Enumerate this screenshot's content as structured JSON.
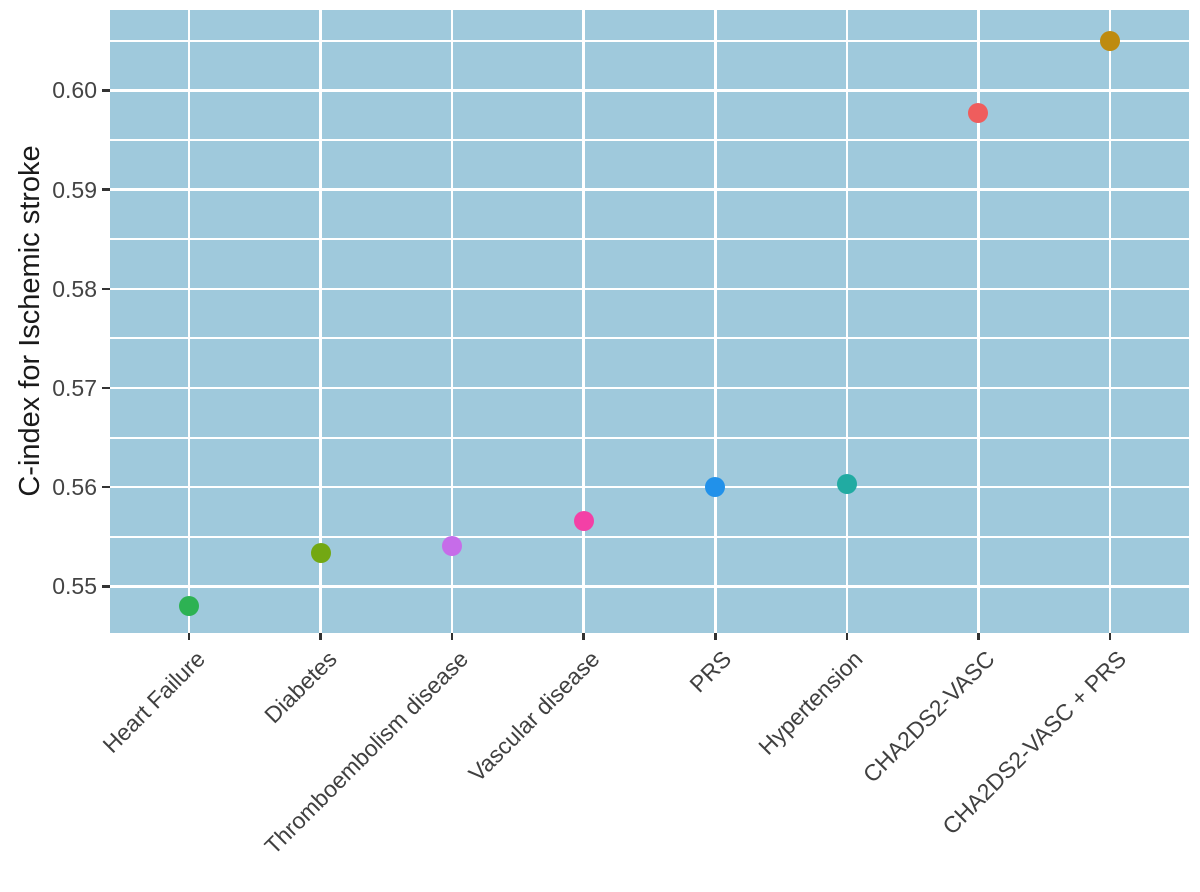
{
  "chart_data": {
    "type": "scatter",
    "title": "",
    "xlabel": "",
    "ylabel": "C-index for Ischemic stroke",
    "categories": [
      "Heart Failure",
      "Diabetes",
      "Thromboembolism disease",
      "Vascular disease",
      "PRS",
      "Hypertension",
      "CHA2DS2-VASC",
      "CHA2DS2-VASC + PRS"
    ],
    "values": [
      0.548,
      0.5534,
      0.5541,
      0.5566,
      0.56,
      0.5603,
      0.5977,
      0.605
    ],
    "point_colors": [
      "#2DB253",
      "#73A813",
      "#C66CE9",
      "#F340A6",
      "#2191EA",
      "#21ABA2",
      "#EF5D5D",
      "#BE8B10"
    ],
    "ylim": [
      0.5453,
      0.6081
    ],
    "y_major_ticks": [
      {
        "value": 0.55,
        "label": "0.55"
      },
      {
        "value": 0.56,
        "label": "0.56"
      },
      {
        "value": 0.57,
        "label": "0.57"
      },
      {
        "value": 0.58,
        "label": "0.58"
      },
      {
        "value": 0.59,
        "label": "0.59"
      },
      {
        "value": 0.6,
        "label": "0.60"
      }
    ],
    "y_minor_ticks": [
      0.555,
      0.565,
      0.575,
      0.585,
      0.595,
      0.605
    ],
    "grid": true,
    "legend_position": "none",
    "x_label_angle_deg": 45,
    "colors": {
      "panel_bg": "#9FC9DC",
      "grid": "#FFFFFF",
      "axis_text": "#404040",
      "axis_title": "#1A1A1A",
      "tick_mark": "#333333",
      "figure_bg": "#FFFFFF"
    }
  }
}
